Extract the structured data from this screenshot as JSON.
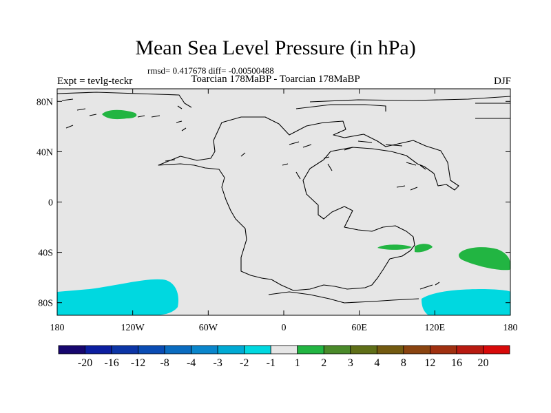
{
  "title": "Mean Sea Level Pressure (in hPa)",
  "stats": "rmsd= 0.417678 diff= -0.00500488",
  "experiment": "Expt = tevlg-teckr",
  "subtitle": "Toarcian 178MaBP - Toarcian 178MaBP",
  "season": "DJF",
  "chart_data": {
    "type": "heatmap",
    "projection": "cylindrical equidistant",
    "xlim": [
      -180,
      180
    ],
    "ylim": [
      -90,
      90
    ],
    "x_ticks": [
      {
        "value": -180,
        "label": "180"
      },
      {
        "value": -120,
        "label": "120W"
      },
      {
        "value": -60,
        "label": "60W"
      },
      {
        "value": 0,
        "label": "0"
      },
      {
        "value": 60,
        "label": "60E"
      },
      {
        "value": 120,
        "label": "120E"
      },
      {
        "value": 180,
        "label": "180"
      }
    ],
    "y_ticks": [
      {
        "value": 80,
        "label": "80N"
      },
      {
        "value": 40,
        "label": "40N"
      },
      {
        "value": 0,
        "label": "0"
      },
      {
        "value": -40,
        "label": "40S"
      },
      {
        "value": -80,
        "label": "80S"
      }
    ],
    "background_value": "-1 to 1",
    "anomaly_regions": [
      {
        "name": "north-pacific-positive",
        "level": "1 to 2",
        "color": "#22b542",
        "approx_center_lon": -135,
        "approx_center_lat": 71
      },
      {
        "name": "indian-ocean-positive",
        "level": "1 to 2",
        "color": "#22b542",
        "approx_center_lon": 110,
        "approx_center_lat": -35
      },
      {
        "name": "southwest-pacific-positive",
        "level": "1 to 2",
        "color": "#22b542",
        "approx_center_lon": 160,
        "approx_center_lat": -44
      },
      {
        "name": "south-pacific-negative",
        "level": "-2 to -1",
        "color": "#00d8e0",
        "approx_center_lon": -130,
        "approx_center_lat": -78
      },
      {
        "name": "antarctic-negative",
        "level": "-2 to -1",
        "color": "#00d8e0",
        "approx_center_lon": 150,
        "approx_center_lat": -80
      }
    ],
    "colorbar": {
      "colors": [
        "#17066e",
        "#0c1ea0",
        "#0c35a6",
        "#0a4cb4",
        "#0a6cc0",
        "#0a86cc",
        "#00aad4",
        "#00d8e0",
        "#e6e6e6",
        "#22b542",
        "#4a8a2a",
        "#5f6f18",
        "#735a10",
        "#8a4410",
        "#a03010",
        "#b81a10",
        "#d80a0a"
      ],
      "labels": [
        "-20",
        "-16",
        "-12",
        "-8",
        "-4",
        "-3",
        "-2",
        "-1",
        "1",
        "2",
        "3",
        "4",
        "8",
        "12",
        "16",
        "20"
      ]
    }
  }
}
